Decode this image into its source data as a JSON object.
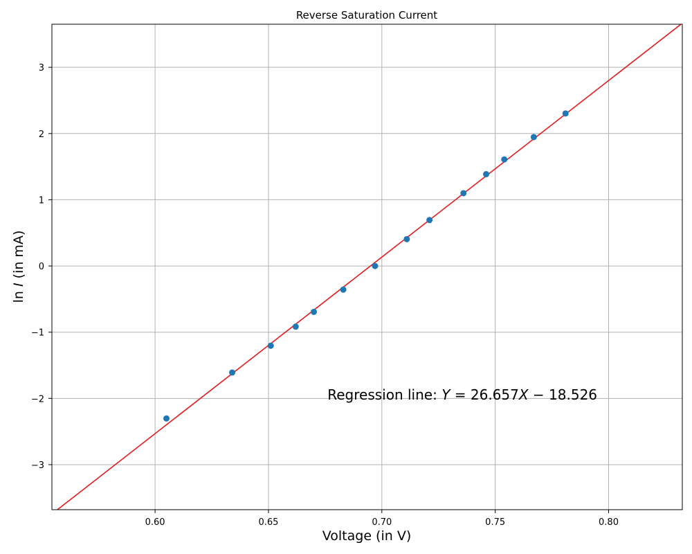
{
  "chart_data": {
    "type": "scatter",
    "title": "Reverse Saturation Current",
    "xlabel": "Voltage (in V)",
    "ylabel_prefix": "ln ",
    "ylabel_var": "I",
    "ylabel_suffix": " (in mA)",
    "xlim": [
      0.5545,
      0.8325
    ],
    "ylim": [
      -3.68,
      3.65
    ],
    "x_ticks": [
      0.6,
      0.65,
      0.7,
      0.75,
      0.8
    ],
    "x_tick_labels": [
      "0.60",
      "0.65",
      "0.70",
      "0.75",
      "0.80"
    ],
    "y_ticks": [
      -3,
      -2,
      -1,
      0,
      1,
      2,
      3
    ],
    "y_tick_labels": [
      "−3",
      "−2",
      "−1",
      "0",
      "1",
      "2",
      "3"
    ],
    "grid": true,
    "points": {
      "color": "#1f77b4",
      "x": [
        0.605,
        0.634,
        0.651,
        0.662,
        0.67,
        0.683,
        0.697,
        0.711,
        0.721,
        0.736,
        0.746,
        0.754,
        0.767,
        0.781
      ],
      "y": [
        -2.303,
        -1.609,
        -1.204,
        -0.916,
        -0.693,
        -0.357,
        0.0,
        0.405,
        0.693,
        1.099,
        1.386,
        1.609,
        1.946,
        2.303
      ]
    },
    "regression": {
      "color": "#e31a1c",
      "slope": 26.657,
      "intercept": -18.526
    },
    "annotation": {
      "prefix": "Regression line: ",
      "lhs": "Y",
      "eq1": " = 26.657",
      "var": "X",
      "eq2": " − 18.526",
      "x": 0.7355,
      "y": -2.02
    }
  }
}
